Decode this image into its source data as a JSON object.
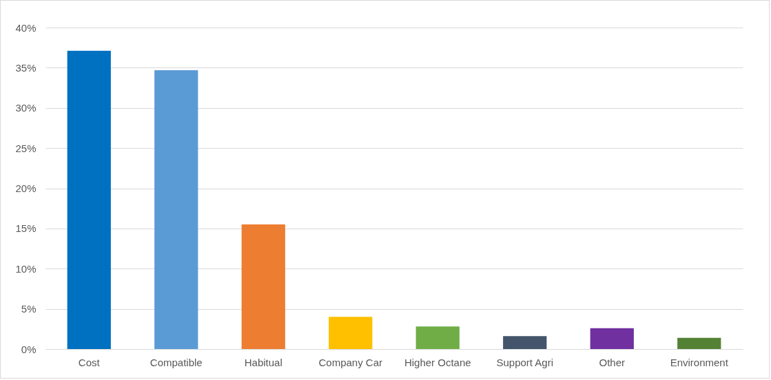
{
  "chart_data": {
    "type": "bar",
    "categories": [
      "Cost",
      "Compatible",
      "Habitual",
      "Company Car",
      "Higher Octane",
      "Support Agri",
      "Other",
      "Environment"
    ],
    "values": [
      37.1,
      34.7,
      15.5,
      4.0,
      2.8,
      1.6,
      2.6,
      1.4
    ],
    "colors": [
      "#0070c0",
      "#5b9bd5",
      "#ed7d31",
      "#ffc000",
      "#70ad47",
      "#44546a",
      "#7030a0",
      "#548235"
    ],
    "ylim": [
      0,
      40
    ],
    "yticks": [
      {
        "value": 0,
        "label": "0%"
      },
      {
        "value": 5,
        "label": "5%"
      },
      {
        "value": 10,
        "label": "10%"
      },
      {
        "value": 15,
        "label": "15%"
      },
      {
        "value": 20,
        "label": "20%"
      },
      {
        "value": 25,
        "label": "25%"
      },
      {
        "value": 30,
        "label": "30%"
      },
      {
        "value": 35,
        "label": "35%"
      },
      {
        "value": 40,
        "label": "40%"
      }
    ],
    "grid": "y"
  }
}
